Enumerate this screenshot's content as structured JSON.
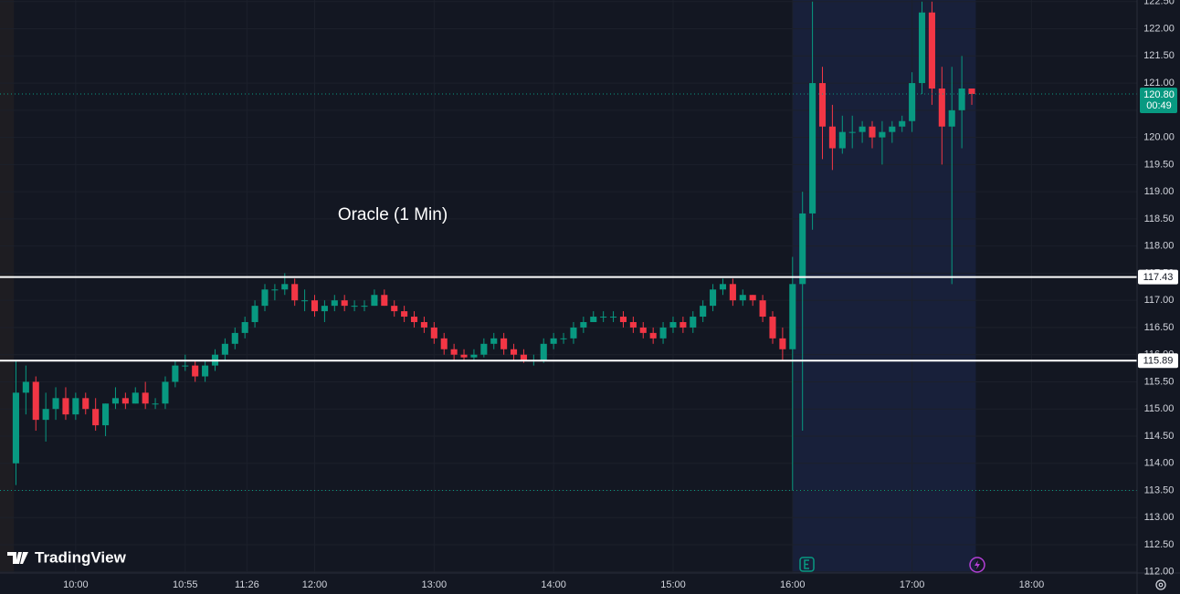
{
  "chart_data": {
    "type": "candlestick",
    "annotation": "Oracle (1 Min)",
    "logo": "TradingView",
    "up_color": "#089981",
    "down_color": "#f23645",
    "xlim": [
      562,
      1133
    ],
    "ylim": [
      111.98,
      122.53
    ],
    "xticks": [
      {
        "value": 600,
        "label": "10:00"
      },
      {
        "value": 655,
        "label": "10:55"
      },
      {
        "value": 686,
        "label": "11:26"
      },
      {
        "value": 720,
        "label": "12:00"
      },
      {
        "value": 780,
        "label": "13:00"
      },
      {
        "value": 840,
        "label": "14:00"
      },
      {
        "value": 900,
        "label": "15:00"
      },
      {
        "value": 960,
        "label": "16:00"
      },
      {
        "value": 1020,
        "label": "17:00"
      },
      {
        "value": 1080,
        "label": "18:00"
      }
    ],
    "yticks": [
      {
        "value": 112,
        "label": "112.00"
      },
      {
        "value": 112.5,
        "label": "112.50"
      },
      {
        "value": 113,
        "label": "113.00"
      },
      {
        "value": 113.5,
        "label": "113.50"
      },
      {
        "value": 114,
        "label": "114.00"
      },
      {
        "value": 114.5,
        "label": "114.50"
      },
      {
        "value": 115,
        "label": "115.00"
      },
      {
        "value": 115.5,
        "label": "115.50"
      },
      {
        "value": 116,
        "label": "116.00"
      },
      {
        "value": 116.5,
        "label": "116.50"
      },
      {
        "value": 117,
        "label": "117.00"
      },
      {
        "value": 117.5,
        "label": "117.50"
      },
      {
        "value": 118,
        "label": "118.00"
      },
      {
        "value": 118.5,
        "label": "118.50"
      },
      {
        "value": 119,
        "label": "119.00"
      },
      {
        "value": 119.5,
        "label": "119.50"
      },
      {
        "value": 120,
        "label": "120.00"
      },
      {
        "value": 120.5,
        "label": "120.50"
      },
      {
        "value": 121,
        "label": "121.00"
      },
      {
        "value": 121.5,
        "label": "121.50"
      },
      {
        "value": 122,
        "label": "122.00"
      },
      {
        "value": 122.5,
        "label": "122.50"
      }
    ],
    "shaded_ranges": [
      {
        "start": 562,
        "end": 569,
        "color": "#1e1d22"
      },
      {
        "start": 960,
        "end": 1052,
        "color": "#18203a"
      }
    ],
    "levels": [
      {
        "value": 117.43,
        "label": "117.43"
      },
      {
        "value": 115.89,
        "label": "115.89"
      }
    ],
    "session_low": 113.5,
    "last_price": {
      "value": 120.8,
      "label": "120.80"
    },
    "countdown": "00:49",
    "x": [
      570,
      575,
      580,
      585,
      590,
      595,
      600,
      605,
      610,
      615,
      620,
      625,
      630,
      635,
      640,
      645,
      650,
      655,
      660,
      665,
      670,
      675,
      680,
      685,
      690,
      695,
      700,
      705,
      710,
      715,
      720,
      725,
      730,
      735,
      740,
      745,
      750,
      755,
      760,
      765,
      770,
      775,
      780,
      785,
      790,
      795,
      800,
      805,
      810,
      815,
      820,
      825,
      830,
      835,
      840,
      845,
      850,
      855,
      860,
      865,
      870,
      875,
      880,
      885,
      890,
      895,
      900,
      905,
      910,
      915,
      920,
      925,
      930,
      935,
      940,
      945,
      950,
      955,
      960,
      965,
      970,
      975,
      980,
      985,
      990,
      995,
      1000,
      1005,
      1010,
      1015,
      1020,
      1025,
      1030,
      1035,
      1040,
      1045,
      1050
    ],
    "open": [
      114.0,
      115.3,
      115.5,
      114.8,
      115.0,
      115.2,
      114.9,
      115.2,
      115.0,
      114.7,
      115.1,
      115.2,
      115.1,
      115.3,
      115.1,
      115.1,
      115.5,
      115.8,
      115.8,
      115.6,
      115.8,
      116.0,
      116.2,
      116.4,
      116.6,
      116.9,
      117.2,
      117.2,
      117.3,
      117.0,
      117.0,
      116.8,
      116.9,
      117.0,
      116.9,
      116.9,
      116.9,
      117.1,
      116.9,
      116.8,
      116.7,
      116.6,
      116.5,
      116.3,
      116.1,
      116.0,
      115.95,
      116.0,
      116.2,
      116.3,
      116.1,
      116.0,
      115.9,
      115.9,
      116.2,
      116.3,
      116.3,
      116.5,
      116.6,
      116.7,
      116.7,
      116.7,
      116.6,
      116.5,
      116.4,
      116.3,
      116.5,
      116.6,
      116.5,
      116.7,
      116.9,
      117.2,
      117.3,
      117.0,
      117.1,
      117.0,
      116.7,
      116.3,
      116.1,
      117.3,
      118.6,
      121.0,
      120.2,
      119.8,
      120.1,
      120.1,
      120.2,
      120.0,
      120.1,
      120.2,
      120.3,
      121.0,
      122.3,
      120.9,
      120.2,
      120.5,
      120.9
    ],
    "high": [
      115.9,
      115.8,
      115.6,
      115.3,
      115.4,
      115.4,
      115.3,
      115.3,
      115.2,
      115.1,
      115.4,
      115.3,
      115.4,
      115.5,
      115.2,
      115.6,
      115.9,
      116.0,
      115.9,
      115.9,
      116.1,
      116.3,
      116.5,
      116.7,
      117.0,
      117.3,
      117.3,
      117.5,
      117.4,
      117.2,
      117.1,
      117.0,
      117.1,
      117.1,
      117.0,
      117.0,
      117.2,
      117.2,
      117.0,
      116.9,
      116.8,
      116.7,
      116.6,
      116.4,
      116.2,
      116.1,
      116.1,
      116.3,
      116.4,
      116.4,
      116.2,
      116.1,
      116.0,
      116.3,
      116.4,
      116.4,
      116.6,
      116.7,
      116.8,
      116.8,
      116.8,
      116.8,
      116.7,
      116.6,
      116.5,
      116.6,
      116.7,
      116.7,
      116.8,
      117.0,
      117.3,
      117.4,
      117.4,
      117.2,
      117.1,
      117.1,
      116.8,
      116.5,
      117.8,
      119.0,
      122.5,
      121.3,
      120.6,
      120.4,
      120.4,
      120.3,
      120.3,
      120.3,
      120.3,
      120.4,
      121.2,
      122.5,
      122.5,
      121.3,
      121.3,
      121.5,
      120.9
    ],
    "low": [
      113.6,
      114.9,
      114.6,
      114.4,
      114.8,
      114.8,
      114.8,
      114.9,
      114.6,
      114.5,
      115.0,
      115.0,
      115.1,
      115.0,
      115.0,
      115.0,
      115.4,
      115.7,
      115.5,
      115.5,
      115.7,
      115.9,
      116.1,
      116.3,
      116.5,
      116.8,
      117.0,
      117.1,
      116.9,
      116.8,
      116.7,
      116.6,
      116.8,
      116.8,
      116.8,
      116.8,
      116.9,
      116.9,
      116.7,
      116.6,
      116.5,
      116.4,
      116.2,
      116.0,
      115.9,
      115.9,
      115.9,
      115.95,
      116.1,
      116.0,
      115.9,
      115.85,
      115.8,
      115.85,
      116.1,
      116.2,
      116.2,
      116.4,
      116.6,
      116.6,
      116.6,
      116.5,
      116.4,
      116.3,
      116.2,
      116.2,
      116.4,
      116.4,
      116.4,
      116.6,
      116.8,
      117.1,
      116.9,
      116.9,
      116.9,
      116.6,
      116.2,
      115.9,
      113.5,
      114.6,
      118.3,
      119.6,
      119.4,
      119.7,
      119.8,
      119.9,
      119.8,
      119.5,
      119.9,
      120.1,
      120.1,
      120.8,
      120.6,
      119.5,
      117.3,
      119.8,
      120.6
    ],
    "close": [
      115.3,
      115.5,
      114.8,
      115.0,
      115.2,
      114.9,
      115.2,
      115.0,
      114.7,
      115.1,
      115.2,
      115.1,
      115.3,
      115.1,
      115.1,
      115.5,
      115.8,
      115.8,
      115.6,
      115.8,
      116.0,
      116.2,
      116.4,
      116.6,
      116.9,
      117.2,
      117.2,
      117.3,
      117.0,
      117.0,
      116.8,
      116.9,
      117.0,
      116.9,
      116.9,
      116.9,
      117.1,
      116.9,
      116.8,
      116.7,
      116.6,
      116.5,
      116.3,
      116.1,
      116.0,
      115.95,
      116.0,
      116.2,
      116.3,
      116.1,
      116.0,
      115.9,
      115.9,
      116.2,
      116.3,
      116.3,
      116.5,
      116.6,
      116.7,
      116.7,
      116.7,
      116.6,
      116.5,
      116.4,
      116.3,
      116.5,
      116.6,
      116.5,
      116.7,
      116.9,
      117.2,
      117.3,
      117.0,
      117.1,
      117.0,
      116.7,
      116.3,
      116.1,
      117.3,
      118.6,
      121.0,
      120.2,
      119.8,
      120.1,
      120.1,
      120.2,
      120.0,
      120.1,
      120.2,
      120.3,
      121.0,
      122.3,
      120.9,
      120.2,
      120.5,
      120.9,
      120.8
    ]
  }
}
